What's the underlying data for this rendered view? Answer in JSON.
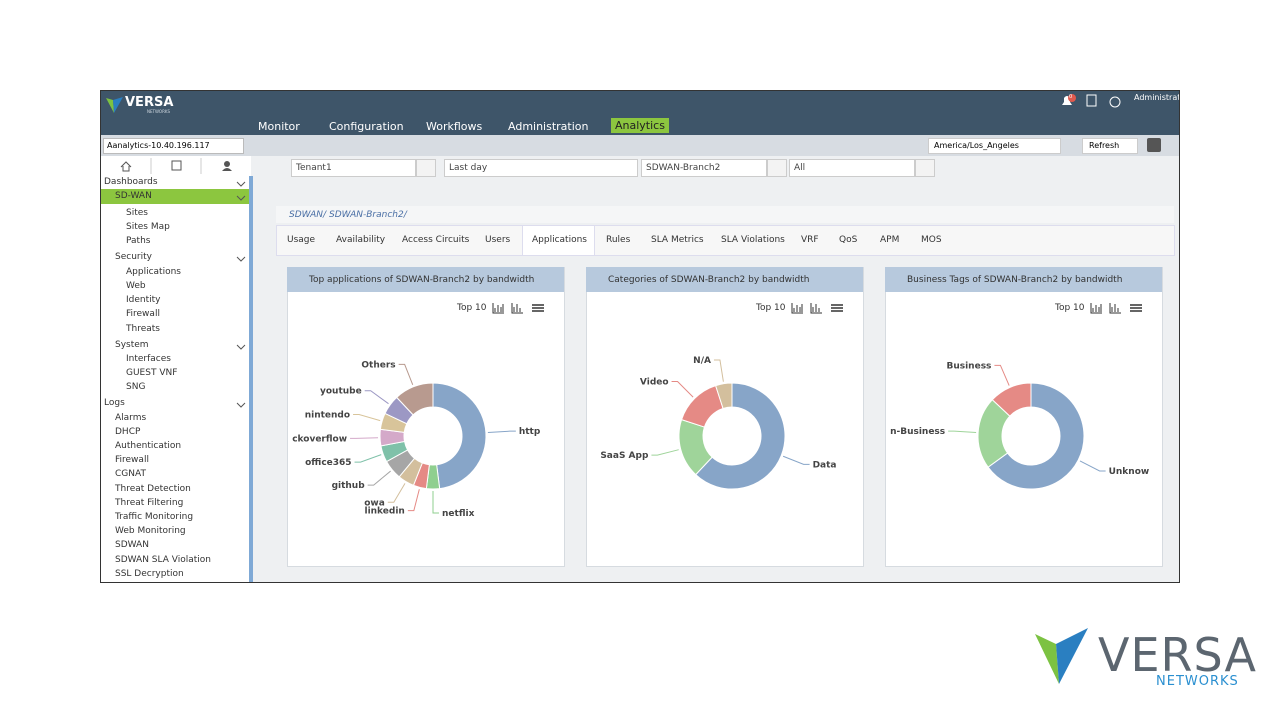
{
  "header": {
    "brand": "VERSA",
    "brand_sub": "NETWORKS",
    "notifications": "0",
    "user": "Administrato",
    "menu": [
      {
        "label": "Monitor"
      },
      {
        "label": "Configuration"
      },
      {
        "label": "Workflows"
      },
      {
        "label": "Administration"
      },
      {
        "label": "Analytics",
        "active": true
      }
    ]
  },
  "toolbar": {
    "instance": "Aanalytics-10.40.196.117",
    "timezone": "America/Los_Angeles",
    "refresh": "Refresh"
  },
  "sidebar": {
    "sections": [
      {
        "title": "Dashboards",
        "items": [
          {
            "label": "SD-WAN",
            "active": true,
            "children": [
              "Sites",
              "Sites Map",
              "Paths"
            ]
          },
          {
            "label": "Security",
            "children": [
              "Applications",
              "Web",
              "Identity",
              "Firewall",
              "Threats"
            ]
          },
          {
            "label": "System",
            "children": [
              "Interfaces",
              "GUEST VNF",
              "SNG"
            ]
          }
        ]
      },
      {
        "title": "Logs",
        "items": [
          {
            "label": "Alarms"
          },
          {
            "label": "DHCP"
          },
          {
            "label": "Authentication"
          },
          {
            "label": "Firewall"
          },
          {
            "label": "CGNAT"
          },
          {
            "label": "Threat Detection"
          },
          {
            "label": "Threat Filtering"
          },
          {
            "label": "Traffic Monitoring"
          },
          {
            "label": "Web Monitoring"
          },
          {
            "label": "SDWAN"
          },
          {
            "label": "SDWAN SLA Violation"
          },
          {
            "label": "SSL Decryption"
          }
        ]
      }
    ]
  },
  "filters": [
    "Tenant1",
    "Last day",
    "SDWAN-Branch2",
    "All"
  ],
  "breadcrumb": [
    "SDWAN/",
    "SDWAN-Branch2/"
  ],
  "tabs": [
    {
      "label": "Usage"
    },
    {
      "label": "Availability"
    },
    {
      "label": "Access Circuits"
    },
    {
      "label": "Users"
    },
    {
      "label": "Applications",
      "active": true
    },
    {
      "label": "Rules"
    },
    {
      "label": "SLA Metrics"
    },
    {
      "label": "SLA Violations"
    },
    {
      "label": "VRF"
    },
    {
      "label": "QoS"
    },
    {
      "label": "APM"
    },
    {
      "label": "MOS"
    }
  ],
  "panels": [
    {
      "title": "Top applications of SDWAN-Branch2 by bandwidth",
      "top": "Top 10",
      "chart": {
        "type": "donut",
        "categories": [
          "http",
          "netflix",
          "linkedin",
          "owa",
          "github",
          "office365",
          "ckoverflow",
          "nintendo",
          "youtube",
          "Others"
        ],
        "values": [
          48,
          4,
          4,
          5,
          6,
          5,
          5,
          5,
          6,
          12
        ],
        "colors": [
          "#87a5c8",
          "#8fcf8f",
          "#e58a85",
          "#d3bf9d",
          "#a6a6a6",
          "#7fc1a9",
          "#d4a9c9",
          "#d8c49a",
          "#9c98c4",
          "#b89a8f"
        ]
      }
    },
    {
      "title": "Categories of SDWAN-Branch2 by bandwidth",
      "top": "Top 10",
      "chart": {
        "type": "donut",
        "categories": [
          "Data",
          "SaaS App",
          "Video",
          "N/A"
        ],
        "values": [
          62,
          18,
          15,
          5
        ],
        "colors": [
          "#87a5c8",
          "#9fd49a",
          "#e58a85",
          "#d3bf9d"
        ]
      }
    },
    {
      "title": "Business Tags of SDWAN-Branch2 by bandwidth",
      "top": "Top 10",
      "chart": {
        "type": "donut",
        "categories": [
          "Unknow",
          "n-Business",
          "Business"
        ],
        "values": [
          65,
          22,
          13
        ],
        "colors": [
          "#87a5c8",
          "#9fd49a",
          "#e58a85"
        ]
      }
    }
  ],
  "logo": {
    "name": "VERSA",
    "sub": "NETWORKS"
  }
}
